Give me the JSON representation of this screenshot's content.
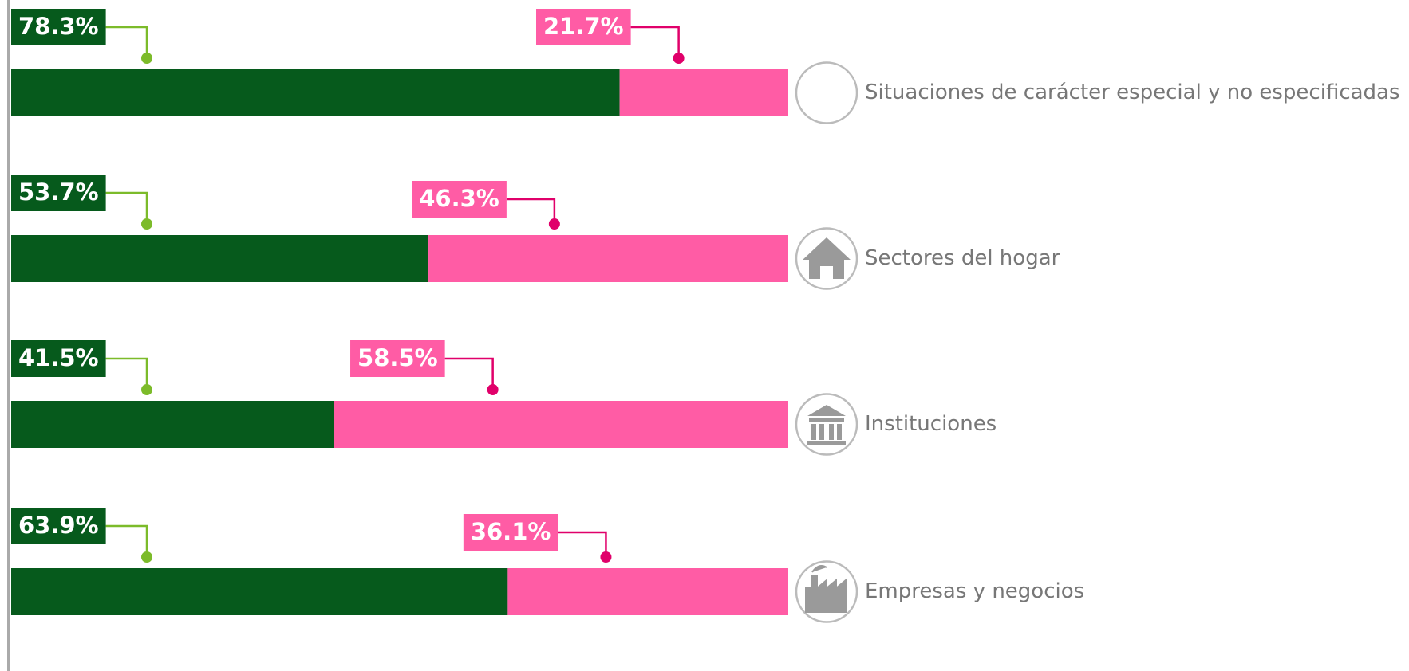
{
  "chart_data": {
    "type": "bar",
    "orientation": "horizontal",
    "stacked": true,
    "categories": [
      "Situaciones de carácter especial y no especificadas",
      "Sectores del hogar",
      "Instituciones",
      "Empresas y negocios"
    ],
    "series": [
      {
        "color": "#065a1c",
        "values": [
          78.3,
          53.7,
          41.5,
          63.9
        ],
        "value_labels": [
          "78.3%",
          "53.7%",
          "41.5%",
          "63.9%"
        ]
      },
      {
        "color": "#ff5ca5",
        "values": [
          21.7,
          46.3,
          58.5,
          36.1
        ],
        "value_labels": [
          "21.7%",
          "46.3%",
          "58.5%",
          "36.1%"
        ]
      }
    ],
    "xlim": [
      0,
      100
    ]
  }
}
